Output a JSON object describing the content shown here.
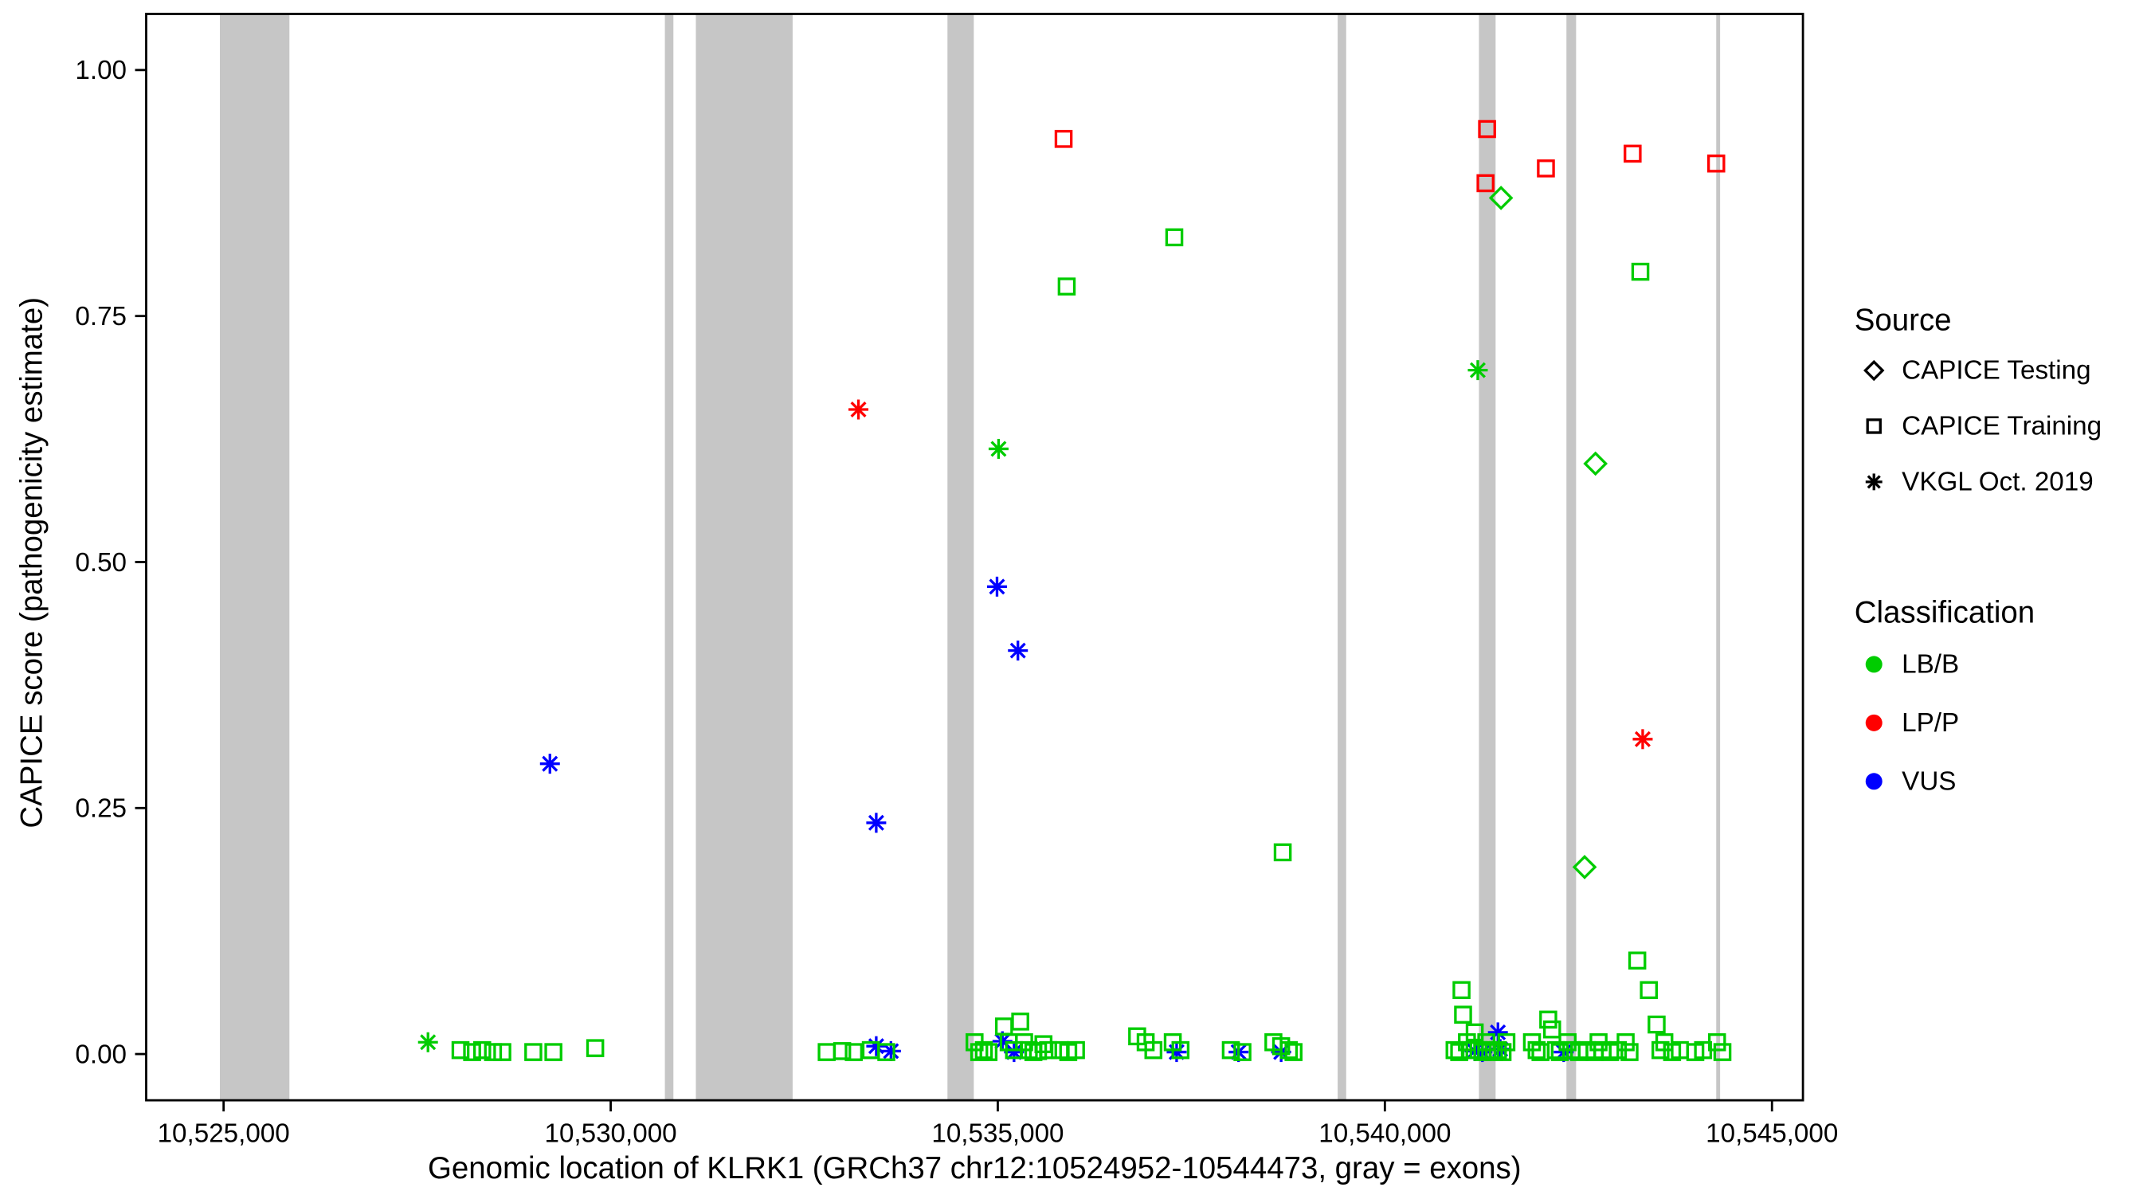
{
  "figure": {
    "x_axis_label": "Genomic location of KLRK1 (GRCh37 chr12:10524952-10544473, gray = exons)",
    "y_axis_label": "CAPICE score (pathogenicity estimate)"
  },
  "chart_data": {
    "type": "scatter",
    "xlabel": "Genomic location of KLRK1 (GRCh37 chr12:10524952-10544473, gray = exons)",
    "ylabel": "CAPICE score (pathogenicity estimate)",
    "xlim": [
      10524000,
      10545400
    ],
    "ylim": [
      -0.047,
      1.057
    ],
    "grid": false,
    "band_color": "#C6C6C6",
    "panel_border_color": "#000000",
    "x_ticks": [
      {
        "value": 10525000,
        "label": "10,525,000"
      },
      {
        "value": 10530000,
        "label": "10,530,000"
      },
      {
        "value": 10535000,
        "label": "10,535,000"
      },
      {
        "value": 10540000,
        "label": "10,540,000"
      },
      {
        "value": 10545000,
        "label": "10,545,000"
      }
    ],
    "y_ticks": [
      {
        "value": 0.0,
        "label": "0.00"
      },
      {
        "value": 0.25,
        "label": "0.25"
      },
      {
        "value": 0.5,
        "label": "0.50"
      },
      {
        "value": 0.75,
        "label": "0.75"
      },
      {
        "value": 1.0,
        "label": "1.00"
      }
    ],
    "exon_bands": [
      [
        10524952,
        10525850
      ],
      [
        10530700,
        10530810
      ],
      [
        10531100,
        10532350
      ],
      [
        10534350,
        10534690
      ],
      [
        10539390,
        10539500
      ],
      [
        10541215,
        10541430
      ],
      [
        10542345,
        10542470
      ],
      [
        10544280,
        10544330
      ]
    ],
    "colors": {
      "LB_B": "#00CC00",
      "LP_P": "#FF0000",
      "VUS": "#0000FF"
    },
    "shapes": {
      "CAPICE Testing": "diamond",
      "CAPICE Training": "square",
      "VKGL Oct. 2019": "asterisk"
    },
    "series": [
      {
        "name": "LB/B - CAPICE Testing",
        "classification": "LB_B",
        "source": "CAPICE Testing",
        "points": [
          [
            10541500,
            0.87
          ],
          [
            10542720,
            0.6
          ],
          [
            10542580,
            0.19
          ]
        ]
      },
      {
        "name": "LB/B - VKGL Oct. 2019",
        "classification": "LB_B",
        "source": "VKGL Oct. 2019",
        "points": [
          [
            10527640,
            0.012
          ],
          [
            10535010,
            0.615
          ],
          [
            10541200,
            0.695
          ]
        ]
      },
      {
        "name": "LP/P - CAPICE Training",
        "classification": "LP_P",
        "source": "CAPICE Training",
        "points": [
          [
            10535850,
            0.93
          ],
          [
            10541300,
            0.885
          ],
          [
            10541320,
            0.94
          ],
          [
            10542080,
            0.9
          ],
          [
            10543200,
            0.915
          ],
          [
            10544280,
            0.905
          ]
        ]
      },
      {
        "name": "LP/P - VKGL Oct. 2019",
        "classification": "LP_P",
        "source": "VKGL Oct. 2019",
        "points": [
          [
            10533200,
            0.655
          ],
          [
            10543330,
            0.32
          ]
        ]
      },
      {
        "name": "VUS - VKGL Oct. 2019",
        "classification": "VUS",
        "source": "VKGL Oct. 2019",
        "points": [
          [
            10529215,
            0.295
          ],
          [
            10533430,
            0.235
          ],
          [
            10534990,
            0.475
          ],
          [
            10535260,
            0.41
          ],
          [
            10533430,
            0.008
          ],
          [
            10533620,
            0.003
          ],
          [
            10535060,
            0.013
          ],
          [
            10535210,
            0.002
          ],
          [
            10537310,
            0.002
          ],
          [
            10538110,
            0.002
          ],
          [
            10538660,
            0.002
          ],
          [
            10541160,
            0.003
          ],
          [
            10541260,
            0.002
          ],
          [
            10541460,
            0.022
          ],
          [
            10541490,
            0.005
          ],
          [
            10542310,
            0.002
          ]
        ]
      },
      {
        "name": "LB/B - CAPICE Training",
        "classification": "LB_B",
        "source": "CAPICE Training",
        "points": [
          [
            10535890,
            0.78
          ],
          [
            10537280,
            0.83
          ],
          [
            10538680,
            0.205
          ],
          [
            10543300,
            0.795
          ],
          [
            10528060,
            0.004
          ],
          [
            10528210,
            0.002
          ],
          [
            10528340,
            0.004
          ],
          [
            10528480,
            0.002
          ],
          [
            10528600,
            0.002
          ],
          [
            10529000,
            0.002
          ],
          [
            10529260,
            0.002
          ],
          [
            10529800,
            0.006
          ],
          [
            10532790,
            0.002
          ],
          [
            10532990,
            0.003
          ],
          [
            10533140,
            0.002
          ],
          [
            10533360,
            0.004
          ],
          [
            10533560,
            0.002
          ],
          [
            10534700,
            0.012
          ],
          [
            10534760,
            0.002
          ],
          [
            10534820,
            0.004
          ],
          [
            10534880,
            0.002
          ],
          [
            10535080,
            0.028
          ],
          [
            10535140,
            0.012
          ],
          [
            10535210,
            0.004
          ],
          [
            10535290,
            0.033
          ],
          [
            10535340,
            0.012
          ],
          [
            10535400,
            0.004
          ],
          [
            10535460,
            0.002
          ],
          [
            10535520,
            0.003
          ],
          [
            10535590,
            0.01
          ],
          [
            10535650,
            0.004
          ],
          [
            10535800,
            0.004
          ],
          [
            10535910,
            0.002
          ],
          [
            10536010,
            0.004
          ],
          [
            10536800,
            0.018
          ],
          [
            10536910,
            0.012
          ],
          [
            10537010,
            0.004
          ],
          [
            10537260,
            0.012
          ],
          [
            10537360,
            0.004
          ],
          [
            10538010,
            0.004
          ],
          [
            10538160,
            0.002
          ],
          [
            10538560,
            0.012
          ],
          [
            10538660,
            0.008
          ],
          [
            10538760,
            0.004
          ],
          [
            10538820,
            0.002
          ],
          [
            10540900,
            0.004
          ],
          [
            10540960,
            0.002
          ],
          [
            10540990,
            0.065
          ],
          [
            10541010,
            0.04
          ],
          [
            10541060,
            0.012
          ],
          [
            10541110,
            0.004
          ],
          [
            10541160,
            0.022
          ],
          [
            10541210,
            0.004
          ],
          [
            10541260,
            0.002
          ],
          [
            10541310,
            0.012
          ],
          [
            10541360,
            0.004
          ],
          [
            10541410,
            0.002
          ],
          [
            10541460,
            0.004
          ],
          [
            10541520,
            0.002
          ],
          [
            10541570,
            0.012
          ],
          [
            10541900,
            0.012
          ],
          [
            10541960,
            0.004
          ],
          [
            10542010,
            0.002
          ],
          [
            10542110,
            0.035
          ],
          [
            10542160,
            0.025
          ],
          [
            10542210,
            0.004
          ],
          [
            10542260,
            0.002
          ],
          [
            10542360,
            0.012
          ],
          [
            10542410,
            0.004
          ],
          [
            10542510,
            0.002
          ],
          [
            10542610,
            0.004
          ],
          [
            10542710,
            0.002
          ],
          [
            10542760,
            0.012
          ],
          [
            10542810,
            0.004
          ],
          [
            10542910,
            0.002
          ],
          [
            10543010,
            0.004
          ],
          [
            10543110,
            0.012
          ],
          [
            10543160,
            0.002
          ],
          [
            10543260,
            0.095
          ],
          [
            10543410,
            0.065
          ],
          [
            10543510,
            0.03
          ],
          [
            10543560,
            0.004
          ],
          [
            10543610,
            0.012
          ],
          [
            10543710,
            0.002
          ],
          [
            10543810,
            0.004
          ],
          [
            10544010,
            0.002
          ],
          [
            10544110,
            0.004
          ],
          [
            10544290,
            0.012
          ],
          [
            10544360,
            0.002
          ]
        ]
      }
    ],
    "legend": {
      "position": "right",
      "source_title": "Source",
      "source_items": [
        {
          "label": "CAPICE Testing",
          "shape": "diamond"
        },
        {
          "label": "CAPICE Training",
          "shape": "square"
        },
        {
          "label": "VKGL Oct. 2019",
          "shape": "asterisk"
        }
      ],
      "classification_title": "Classification",
      "classification_items": [
        {
          "label": "LB/B",
          "color": "#00CC00"
        },
        {
          "label": "LP/P",
          "color": "#FF0000"
        },
        {
          "label": "VUS",
          "color": "#0000FF"
        }
      ]
    }
  }
}
